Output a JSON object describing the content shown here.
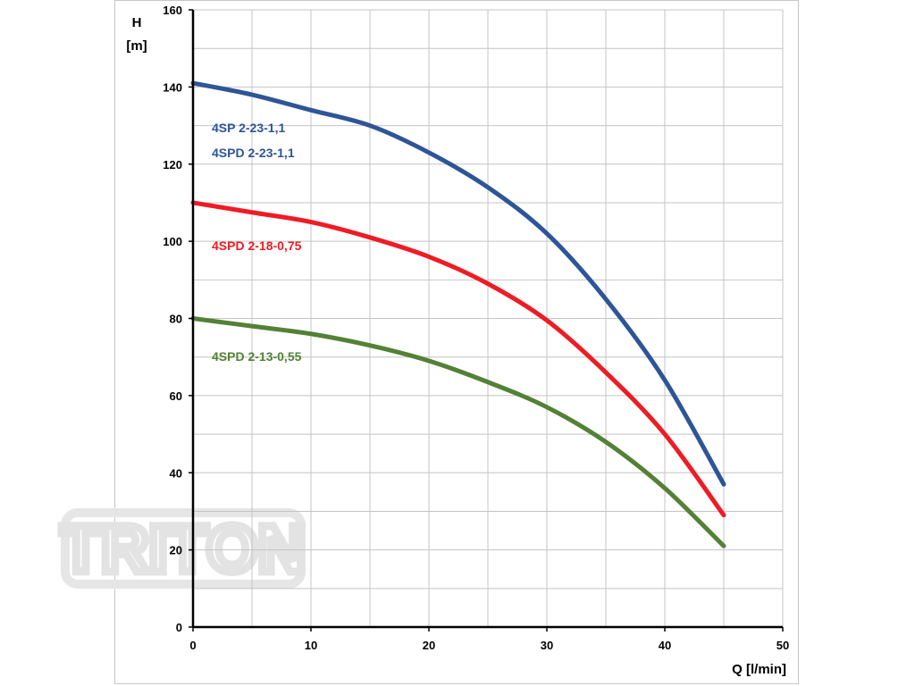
{
  "watermark": {
    "text": "TRITON",
    "color": "#e6e6e6"
  },
  "chart_data": {
    "type": "line",
    "title": "",
    "xlabel": "Q [l/min]",
    "ylabel_line1": "H",
    "ylabel_line2": "[m]",
    "xlim": [
      0,
      50
    ],
    "ylim": [
      0,
      160
    ],
    "x_ticks": [
      0,
      10,
      20,
      30,
      40,
      50
    ],
    "y_ticks": [
      0,
      20,
      40,
      60,
      80,
      100,
      120,
      140,
      160
    ],
    "x_minor_step": 5,
    "y_minor_step": 10,
    "grid": true,
    "series": [
      {
        "labels": [
          "4SP 2-23-1,1",
          "4SPD 2-23-1,1"
        ],
        "color": "#2e5597",
        "x": [
          0,
          5,
          10,
          15,
          20,
          25,
          30,
          35,
          40,
          45
        ],
        "y": [
          141,
          138,
          134,
          130,
          123,
          114,
          102,
          85,
          64,
          37
        ]
      },
      {
        "labels": [
          "4SPD 2-18-0,75"
        ],
        "color": "#ee1c25",
        "x": [
          0,
          5,
          10,
          15,
          20,
          25,
          30,
          35,
          40,
          45
        ],
        "y": [
          110,
          107.5,
          105,
          101,
          96,
          89,
          79.5,
          66,
          50,
          29
        ]
      },
      {
        "labels": [
          "4SPD 2-13-0,55"
        ],
        "color": "#538135",
        "x": [
          0,
          5,
          10,
          15,
          20,
          25,
          30,
          35,
          40,
          45
        ],
        "y": [
          80,
          78,
          76,
          73,
          69,
          63.5,
          57,
          48,
          36,
          21
        ]
      }
    ]
  }
}
